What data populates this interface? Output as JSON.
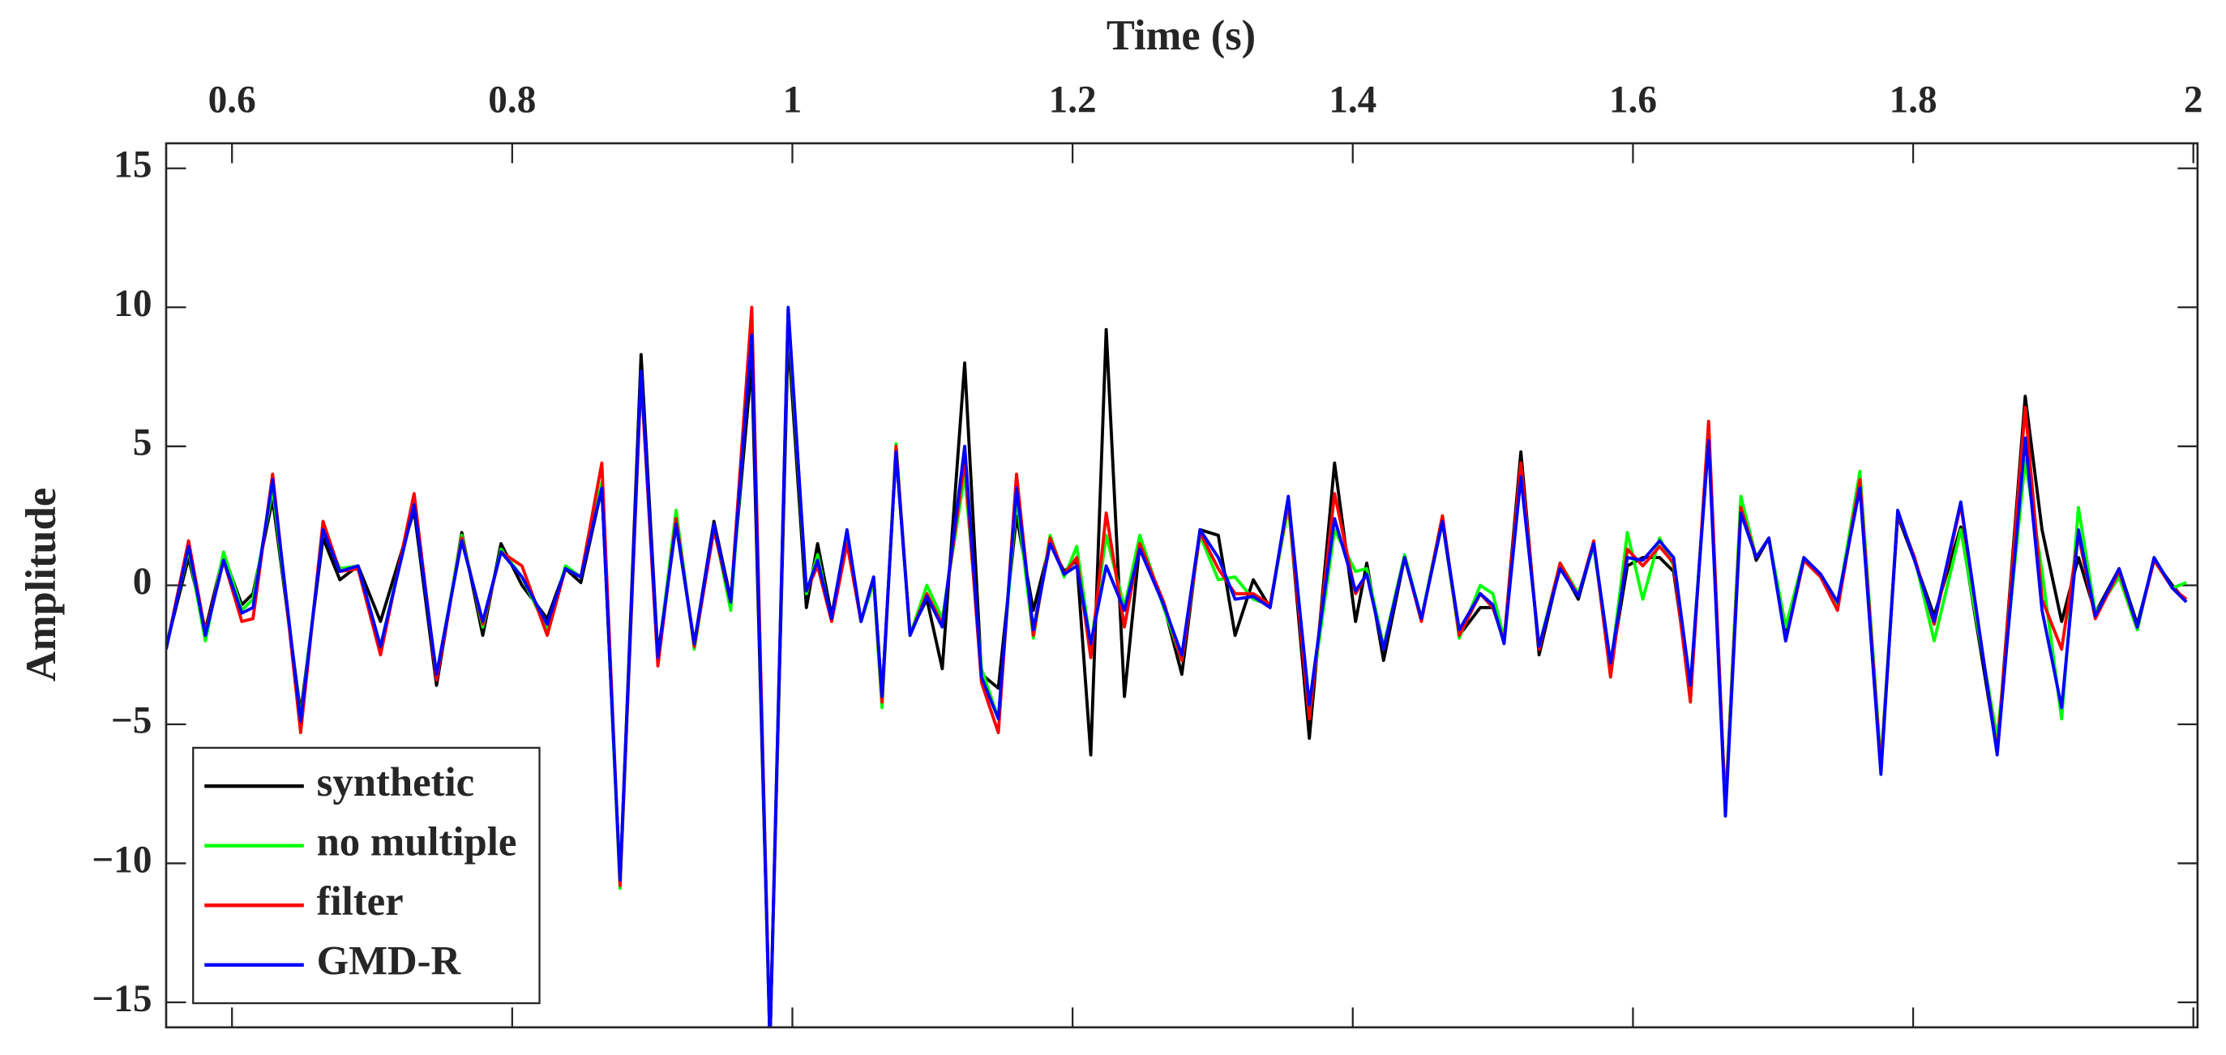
{
  "chart_data": {
    "type": "line",
    "xlabel": "Time (s)",
    "ylabel": "Amplitude",
    "x": [
      0.553,
      0.569,
      0.581,
      0.594,
      0.607,
      0.615,
      0.629,
      0.649,
      0.665,
      0.677,
      0.69,
      0.706,
      0.73,
      0.746,
      0.764,
      0.779,
      0.792,
      0.807,
      0.825,
      0.838,
      0.849,
      0.864,
      0.877,
      0.892,
      0.904,
      0.917,
      0.93,
      0.944,
      0.956,
      0.971,
      0.984,
      0.997,
      1.01,
      1.018,
      1.028,
      1.039,
      1.049,
      1.058,
      1.064,
      1.074,
      1.084,
      1.096,
      1.107,
      1.123,
      1.135,
      1.147,
      1.16,
      1.172,
      1.184,
      1.194,
      1.203,
      1.213,
      1.224,
      1.237,
      1.248,
      1.265,
      1.278,
      1.291,
      1.304,
      1.316,
      1.329,
      1.341,
      1.354,
      1.369,
      1.387,
      1.402,
      1.41,
      1.422,
      1.437,
      1.449,
      1.464,
      1.476,
      1.491,
      1.5,
      1.508,
      1.52,
      1.533,
      1.548,
      1.561,
      1.572,
      1.584,
      1.596,
      1.607,
      1.619,
      1.629,
      1.641,
      1.654,
      1.666,
      1.677,
      1.688,
      1.697,
      1.709,
      1.722,
      1.734,
      1.746,
      1.762,
      1.777,
      1.789,
      1.801,
      1.815,
      1.834,
      1.86,
      1.88,
      1.892,
      1.906,
      1.918,
      1.93,
      1.947,
      1.96,
      1.972,
      1.985,
      1.995
    ],
    "series": [
      {
        "name": "synthetic",
        "color": "#000000",
        "values": [
          -2.2,
          1.0,
          -1.6,
          1.1,
          -0.7,
          -0.3,
          3.1,
          -4.6,
          1.7,
          0.2,
          0.7,
          -1.3,
          2.7,
          -3.6,
          1.9,
          -1.8,
          1.5,
          0.0,
          -1.2,
          0.6,
          0.1,
          3.5,
          -10.7,
          8.3,
          -2.5,
          2.2,
          -2.1,
          2.3,
          -0.5,
          8.0,
          -16.5,
          9.0,
          -0.8,
          1.5,
          -1.1,
          1.9,
          -1.3,
          0.2,
          -4.0,
          4.8,
          -1.7,
          -0.5,
          -3.0,
          8.0,
          -3.2,
          -3.7,
          2.5,
          -0.9,
          1.5,
          0.5,
          0.9,
          -6.1,
          9.2,
          -4.0,
          1.5,
          -0.7,
          -3.2,
          2.0,
          1.8,
          -1.8,
          0.2,
          -0.8,
          3.0,
          -5.5,
          4.4,
          -1.3,
          0.8,
          -2.7,
          1.0,
          -1.2,
          2.3,
          -1.8,
          -0.8,
          -0.8,
          -2.0,
          4.8,
          -2.5,
          0.7,
          -0.5,
          1.5,
          -3.0,
          0.7,
          1.0,
          1.0,
          0.5,
          -3.8,
          5.5,
          -8.0,
          3.0,
          0.9,
          1.7,
          -1.8,
          0.9,
          0.3,
          -0.7,
          3.6,
          -6.5,
          2.5,
          0.9,
          -1.1,
          2.1,
          -6.0,
          6.8,
          2.0,
          -1.3,
          1.0,
          -1.0,
          0.6,
          -1.4,
          0.9,
          0.0,
          -0.6
        ]
      },
      {
        "name": "no multiple",
        "color": "#00ff00",
        "values": [
          -2.2,
          1.3,
          -2.0,
          1.2,
          -0.9,
          -0.5,
          3.5,
          -4.8,
          2.0,
          0.6,
          0.7,
          -2.2,
          3.0,
          -3.3,
          1.8,
          -1.5,
          1.3,
          0.3,
          -1.6,
          0.7,
          0.3,
          3.7,
          -10.9,
          7.6,
          -2.7,
          2.7,
          -2.3,
          2.1,
          -0.9,
          9.2,
          -16.5,
          9.7,
          -0.3,
          1.1,
          -1.3,
          1.7,
          -1.3,
          0.1,
          -4.4,
          5.1,
          -1.8,
          0.0,
          -1.2,
          4.0,
          -3.0,
          -4.8,
          3.2,
          -1.9,
          1.8,
          0.3,
          1.4,
          -2.2,
          1.8,
          -0.8,
          1.8,
          -0.8,
          -2.7,
          1.8,
          0.2,
          0.3,
          -0.5,
          -0.7,
          2.8,
          -4.5,
          2.0,
          0.5,
          0.6,
          -2.2,
          1.1,
          -1.2,
          2.5,
          -1.9,
          0.0,
          -0.3,
          -1.9,
          4.0,
          -2.2,
          0.8,
          -0.3,
          1.4,
          -3.0,
          1.9,
          -0.5,
          1.7,
          0.7,
          -3.7,
          5.5,
          -8.0,
          3.2,
          1.0,
          1.7,
          -1.5,
          1.0,
          0.3,
          -0.7,
          4.1,
          -6.4,
          2.6,
          1.0,
          -2.0,
          2.0,
          -5.5,
          4.5,
          0.5,
          -4.8,
          2.8,
          -1.0,
          0.3,
          -1.6,
          1.0,
          -0.1,
          0.1
        ]
      },
      {
        "name": "filter",
        "color": "#ff0000",
        "values": [
          -2.3,
          1.6,
          -1.7,
          0.9,
          -1.3,
          -1.2,
          4.0,
          -5.3,
          2.3,
          0.5,
          0.6,
          -2.5,
          3.3,
          -3.4,
          1.7,
          -1.4,
          1.2,
          0.7,
          -1.8,
          0.6,
          0.3,
          4.4,
          -10.8,
          7.5,
          -2.9,
          2.4,
          -2.2,
          2.0,
          -0.6,
          10.0,
          -16.5,
          9.9,
          -0.2,
          0.7,
          -1.3,
          1.5,
          -1.3,
          0.3,
          -4.2,
          5.0,
          -1.8,
          -0.3,
          -1.4,
          4.5,
          -3.5,
          -5.3,
          4.0,
          -1.8,
          1.7,
          0.4,
          1.0,
          -2.6,
          2.6,
          -1.5,
          1.5,
          -0.6,
          -2.7,
          1.9,
          0.6,
          -0.3,
          -0.3,
          -0.7,
          3.0,
          -4.8,
          3.3,
          -0.3,
          0.4,
          -2.3,
          1.0,
          -1.3,
          2.5,
          -1.8,
          -0.3,
          -0.8,
          -2.0,
          4.4,
          -2.3,
          0.8,
          -0.4,
          1.6,
          -3.3,
          1.3,
          0.7,
          1.4,
          0.8,
          -4.2,
          5.9,
          -8.1,
          2.8,
          1.0,
          1.7,
          -2.0,
          0.9,
          0.3,
          -0.9,
          3.8,
          -6.6,
          2.6,
          1.0,
          -1.4,
          2.9,
          -6.0,
          6.4,
          -0.5,
          -2.3,
          1.8,
          -1.2,
          0.5,
          -1.5,
          0.9,
          -0.1,
          -0.5
        ]
      },
      {
        "name": "GMD-R",
        "color": "#0000ff",
        "values": [
          -2.3,
          1.4,
          -1.8,
          0.9,
          -1.0,
          -0.8,
          3.8,
          -4.9,
          2.0,
          0.5,
          0.7,
          -2.2,
          2.9,
          -3.2,
          1.6,
          -1.3,
          1.2,
          0.3,
          -1.4,
          0.6,
          0.3,
          3.5,
          -10.6,
          7.7,
          -2.6,
          2.2,
          -2.1,
          2.2,
          -0.6,
          9.0,
          -16.5,
          10.0,
          -0.2,
          0.9,
          -1.2,
          2.0,
          -1.3,
          0.3,
          -4.0,
          4.8,
          -1.8,
          -0.4,
          -1.5,
          5.0,
          -3.3,
          -4.8,
          3.5,
          -1.6,
          1.5,
          0.4,
          0.7,
          -2.1,
          0.7,
          -0.9,
          1.3,
          -0.7,
          -2.5,
          2.0,
          1.0,
          -0.5,
          -0.4,
          -0.8,
          3.2,
          -4.3,
          2.4,
          -0.2,
          0.4,
          -2.3,
          1.0,
          -1.2,
          2.3,
          -1.6,
          -0.3,
          -0.7,
          -2.1,
          3.9,
          -2.2,
          0.6,
          -0.4,
          1.5,
          -2.8,
          1.0,
          0.9,
          1.6,
          1.0,
          -3.6,
          5.2,
          -8.3,
          2.6,
          1.0,
          1.7,
          -2.0,
          1.0,
          0.4,
          -0.6,
          3.5,
          -6.8,
          2.7,
          0.9,
          -1.3,
          3.0,
          -6.1,
          5.3,
          -0.9,
          -4.4,
          2.0,
          -1.1,
          0.6,
          -1.5,
          1.0,
          -0.1,
          -0.6
        ]
      }
    ],
    "xlim": [
      0.553,
      2.003
    ],
    "xticks": [
      0.6,
      0.8,
      1,
      1.2,
      1.4,
      1.6,
      1.8,
      2
    ],
    "ylim": [
      -15.9,
      15.9
    ],
    "yticks": [
      {
        "value": -15,
        "label": "−15"
      },
      {
        "value": -10,
        "label": "−10"
      },
      {
        "value": -5,
        "label": "−5"
      },
      0,
      5,
      10,
      15
    ],
    "xaxis_position": "top",
    "legend": "lower left"
  }
}
